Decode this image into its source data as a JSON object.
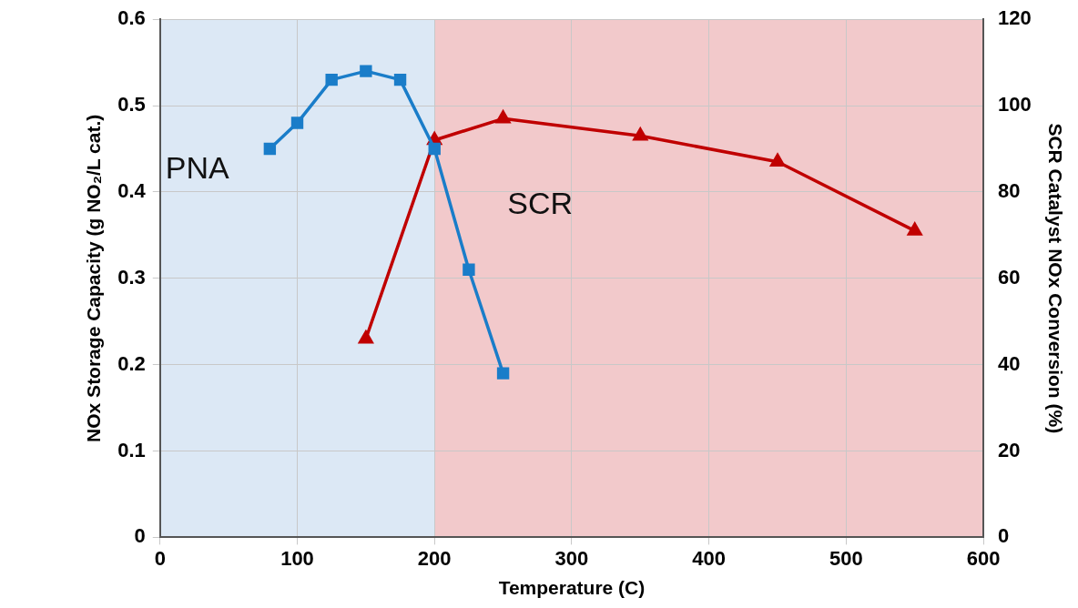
{
  "chart_data": {
    "type": "line",
    "xlabel": "Temperature (C)",
    "ylabel": "NOx Storage Capacity (g NO₂/L cat.)",
    "y2label": "SCR Catalyst NOx Conversion (%)",
    "xlim": [
      0,
      600
    ],
    "xticks": [
      0,
      100,
      200,
      300,
      400,
      500,
      600
    ],
    "ylim": [
      0,
      0.6
    ],
    "yticks": [
      0,
      0.1,
      0.2,
      0.3,
      0.4,
      0.5,
      0.6
    ],
    "y2lim": [
      0,
      120
    ],
    "y2ticks": [
      0,
      20,
      40,
      60,
      80,
      100,
      120
    ],
    "grid": true,
    "legend": false,
    "bands": [
      {
        "axis": "x",
        "from": 0,
        "to": 200,
        "label": "PNA",
        "color": "#dce8f5"
      },
      {
        "axis": "x",
        "from": 200,
        "to": 600,
        "label": "SCR",
        "color": "#f2c9cb"
      }
    ],
    "series": [
      {
        "color": "#1a7dc9",
        "marker": "square",
        "x": [
          80,
          100,
          125,
          150,
          175,
          200,
          225,
          250
        ],
        "values": [
          0.45,
          0.48,
          0.53,
          0.54,
          0.53,
          0.45,
          0.31,
          0.19
        ]
      },
      {
        "color": "#c00000",
        "marker": "triangle",
        "axis": "y2",
        "x": [
          150,
          200,
          250,
          350,
          450,
          550
        ],
        "values": [
          46,
          92,
          97,
          93,
          87,
          71
        ]
      }
    ]
  }
}
